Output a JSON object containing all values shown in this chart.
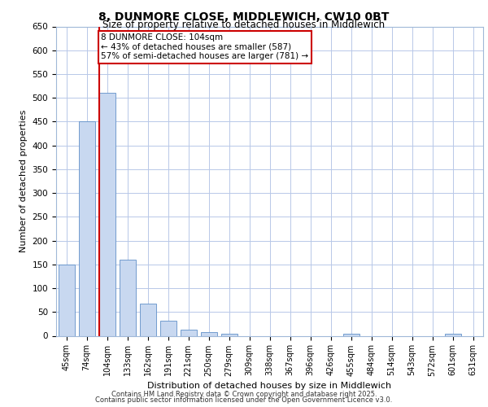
{
  "title_line1": "8, DUNMORE CLOSE, MIDDLEWICH, CW10 0BT",
  "title_line2": "Size of property relative to detached houses in Middlewich",
  "xlabel": "Distribution of detached houses by size in Middlewich",
  "ylabel": "Number of detached properties",
  "categories": [
    "45sqm",
    "74sqm",
    "104sqm",
    "133sqm",
    "162sqm",
    "191sqm",
    "221sqm",
    "250sqm",
    "279sqm",
    "309sqm",
    "338sqm",
    "367sqm",
    "396sqm",
    "426sqm",
    "455sqm",
    "484sqm",
    "514sqm",
    "543sqm",
    "572sqm",
    "601sqm",
    "631sqm"
  ],
  "values": [
    150,
    450,
    510,
    160,
    68,
    32,
    13,
    8,
    5,
    0,
    0,
    0,
    0,
    0,
    5,
    0,
    0,
    0,
    0,
    5,
    0
  ],
  "bar_color": "#c8d8f0",
  "bar_edge_color": "#6090c8",
  "red_line_index": 2,
  "ylim": [
    0,
    650
  ],
  "yticks": [
    0,
    50,
    100,
    150,
    200,
    250,
    300,
    350,
    400,
    450,
    500,
    550,
    600,
    650
  ],
  "annotation_line1": "8 DUNMORE CLOSE: 104sqm",
  "annotation_line2": "← 43% of detached houses are smaller (587)",
  "annotation_line3": "57% of semi-detached houses are larger (781) →",
  "annotation_box_facecolor": "#ffffff",
  "annotation_box_edgecolor": "#cc0000",
  "background_color": "#ffffff",
  "plot_bg_color": "#ffffff",
  "grid_color": "#b8c8e8",
  "footer_line1": "Contains HM Land Registry data © Crown copyright and database right 2025.",
  "footer_line2": "Contains public sector information licensed under the Open Government Licence v3.0."
}
